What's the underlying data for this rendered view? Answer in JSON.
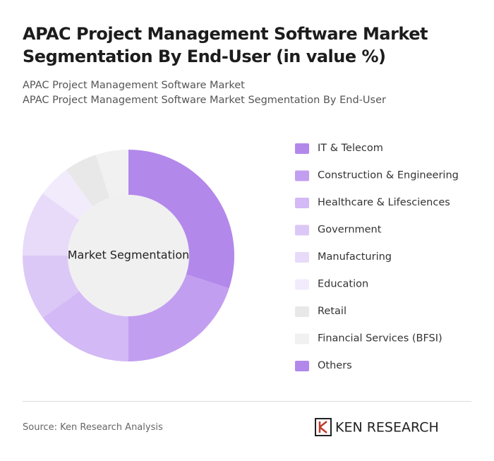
{
  "chart_data": {
    "type": "donut",
    "title": "APAC Project Management Software Market Segmentation By End-User (in value %)",
    "subtitle": [
      "APAC Project Management Software Market",
      "APAC Project Management Software Market Segmentation By End-User"
    ],
    "center_label": "Market Segmentation",
    "categories": [
      "IT & Telecom",
      "Construction & Engineering",
      "Healthcare & Lifesciences",
      "Government",
      "Manufacturing",
      "Education",
      "Retail",
      "Financial Services (BFSI)",
      "Others"
    ],
    "values": [
      30,
      20,
      15,
      10,
      10,
      5,
      5,
      5,
      0
    ],
    "colors": [
      "#b388eb",
      "#c29ef0",
      "#d3b9f5",
      "#dcc8f6",
      "#e7dbf9",
      "#f2ebfc",
      "#e8e8e8",
      "#f1f1f1",
      "#b388eb"
    ],
    "source": "Source: Ken Research Analysis",
    "brand": "KEN RESEARCH"
  }
}
